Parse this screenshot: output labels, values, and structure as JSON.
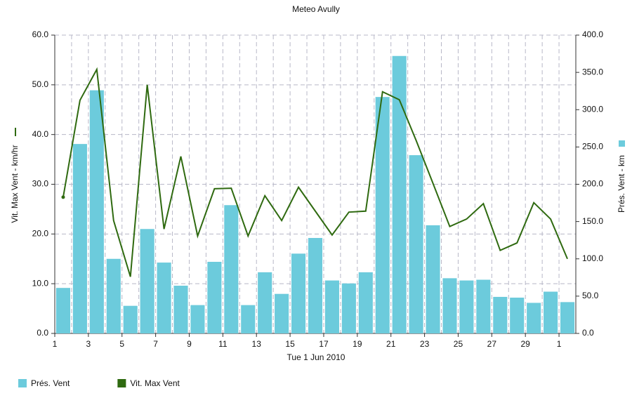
{
  "chart_data": {
    "type": "bar",
    "title": "Meteo  Avully",
    "x_label": "Tue 1 Jun 2010",
    "y_label": "Vit. Max Vent - km/hr",
    "y2_label": "Prés. Vent - km",
    "xlim": [
      0,
      31
    ],
    "xticks": [
      {
        "value": 0,
        "label": "1"
      },
      {
        "value": 2,
        "label": "3"
      },
      {
        "value": 4,
        "label": "5"
      },
      {
        "value": 6,
        "label": "7"
      },
      {
        "value": 8,
        "label": "9"
      },
      {
        "value": 10,
        "label": "11"
      },
      {
        "value": 12,
        "label": "13"
      },
      {
        "value": 14,
        "label": "15"
      },
      {
        "value": 16,
        "label": "17"
      },
      {
        "value": 18,
        "label": "19"
      },
      {
        "value": 20,
        "label": "21"
      },
      {
        "value": 22,
        "label": "23"
      },
      {
        "value": 24,
        "label": "25"
      },
      {
        "value": 26,
        "label": "27"
      },
      {
        "value": 28,
        "label": "29"
      },
      {
        "value": 30,
        "label": "1"
      }
    ],
    "ylim": [
      0,
      60
    ],
    "yticks": [
      {
        "value": 0,
        "label": "0.0"
      },
      {
        "value": 10,
        "label": "10.0"
      },
      {
        "value": 20,
        "label": "20.0"
      },
      {
        "value": 30,
        "label": "30.0"
      },
      {
        "value": 40,
        "label": "40.0"
      },
      {
        "value": 50,
        "label": "50.0"
      },
      {
        "value": 60,
        "label": "60.0"
      }
    ],
    "y2lim": [
      0,
      400
    ],
    "y2ticks": [
      {
        "value": 0,
        "label": "0.0"
      },
      {
        "value": 50,
        "label": "50.0"
      },
      {
        "value": 100,
        "label": "100.0"
      },
      {
        "value": 150,
        "label": "150.0"
      },
      {
        "value": 200,
        "label": "200.0"
      },
      {
        "value": 250,
        "label": "250.0"
      },
      {
        "value": 300,
        "label": "300.0"
      },
      {
        "value": 350,
        "label": "350.0"
      },
      {
        "value": 400,
        "label": "400.0"
      }
    ],
    "grid": true,
    "legend": "bottom",
    "x": [
      0.5,
      1.5,
      2.5,
      3.5,
      4.5,
      5.5,
      6.5,
      7.5,
      8.5,
      9.5,
      10.5,
      11.5,
      12.5,
      13.5,
      14.5,
      15.5,
      16.5,
      17.5,
      18.5,
      19.5,
      20.5,
      21.5,
      22.5,
      23.5,
      24.5,
      25.5,
      26.5,
      27.5,
      28.5,
      29.5,
      30.5
    ],
    "series": [
      {
        "name": "Prés. Vent",
        "type": "bar",
        "axis": "y2",
        "color": "#6ccbdc",
        "values": [
          61,
          254,
          326,
          100,
          37,
          140,
          95,
          64,
          38,
          96,
          172,
          38,
          82,
          53,
          107,
          128,
          71,
          67,
          82,
          317,
          372,
          239,
          145,
          74,
          71,
          72,
          49,
          48,
          41,
          56,
          42
        ]
      },
      {
        "name": "Vit. Max Vent",
        "type": "line",
        "axis": "y",
        "color": "#2f6a10",
        "values": [
          27.4,
          46.9,
          53.1,
          22.7,
          11.4,
          50.0,
          21.0,
          35.6,
          19.6,
          29.1,
          29.2,
          19.6,
          27.7,
          22.7,
          29.4,
          24.6,
          19.8,
          24.4,
          24.6,
          48.6,
          47.0,
          38.8,
          30.2,
          21.5,
          23.0,
          26.1,
          16.7,
          18.2,
          26.3,
          23.0,
          15.0
        ]
      }
    ]
  }
}
